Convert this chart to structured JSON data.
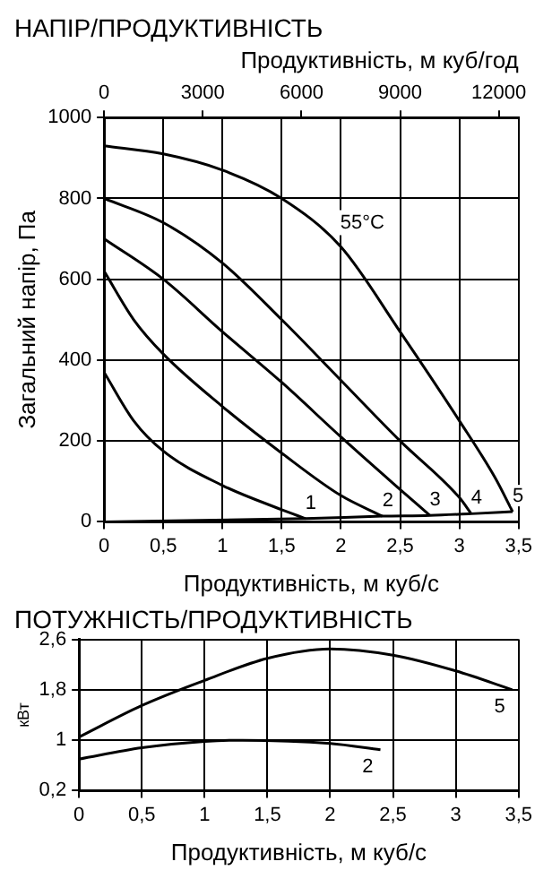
{
  "chart_data": [
    {
      "type": "line",
      "title": "НАПІР/ПРОДУКТИВНІСТЬ",
      "xlabel": "Продуктивність, м куб/с",
      "ylabel": "Загальний напір, Па",
      "x2label": "Продуктивність, м куб/год",
      "xlim": [
        0,
        3.5
      ],
      "xticks": [
        0,
        {
          "value": 0.5,
          "label": "0,5"
        },
        1,
        {
          "value": 1.5,
          "label": "1,5"
        },
        2,
        {
          "value": 2.5,
          "label": "2,5"
        },
        3,
        {
          "value": 3.5,
          "label": "3,5"
        }
      ],
      "ylim": [
        0,
        1000
      ],
      "yticks": [
        0,
        200,
        400,
        600,
        800,
        1000
      ],
      "x2lim": [
        0,
        12600
      ],
      "x2ticks": [
        0,
        3000,
        6000,
        9000,
        12000
      ],
      "grid": true,
      "legend": false,
      "marker": "none",
      "line_style": "solid",
      "annotations": [
        "55°C"
      ],
      "series": [
        {
          "name": "1",
          "color": "#000000",
          "x": [
            0,
            0.25,
            0.5,
            1,
            1.5,
            1.7
          ],
          "values": [
            370,
            250,
            175,
            90,
            30,
            8
          ]
        },
        {
          "name": "2",
          "color": "#000000",
          "x": [
            0,
            0.25,
            0.5,
            1,
            1.5,
            2,
            2.35
          ],
          "values": [
            620,
            500,
            415,
            285,
            170,
            65,
            14
          ]
        },
        {
          "name": "3",
          "color": "#000000",
          "x": [
            0,
            0.5,
            1,
            1.5,
            2,
            2.5,
            2.75
          ],
          "values": [
            700,
            600,
            470,
            345,
            210,
            80,
            16
          ]
        },
        {
          "name": "4",
          "color": "#000000",
          "x": [
            0,
            0.5,
            1,
            1.5,
            2,
            2.5,
            3,
            3.1
          ],
          "values": [
            800,
            740,
            640,
            500,
            350,
            200,
            60,
            20
          ]
        },
        {
          "name": "5",
          "color": "#000000",
          "x": [
            0,
            0.5,
            1,
            1.5,
            2,
            2.5,
            3,
            3.3,
            3.45
          ],
          "values": [
            930,
            910,
            870,
            800,
            680,
            470,
            250,
            110,
            25
          ]
        },
        {
          "color": "#000000",
          "x": [
            0,
            1.7,
            2.35,
            2.75,
            3.1,
            3.45
          ],
          "values": [
            0,
            8,
            14,
            16,
            20,
            25
          ]
        }
      ]
    },
    {
      "type": "line",
      "title": "ПОТУЖНІСТЬ/ПРОДУКТИВНІСТЬ",
      "xlabel": "Продуктивність, м куб/с",
      "ylabel": "кВт",
      "xlim": [
        0,
        3.5
      ],
      "xticks": [
        0,
        {
          "value": 0.5,
          "label": "0,5"
        },
        1,
        {
          "value": 1.5,
          "label": "1,5"
        },
        2,
        {
          "value": 2.5,
          "label": "2,5"
        },
        3,
        {
          "value": 3.5,
          "label": "3,5"
        }
      ],
      "ylim": [
        0.2,
        2.6
      ],
      "yticks": [
        {
          "value": 0.2,
          "label": "0,2"
        },
        1,
        {
          "value": 1.8,
          "label": "1,8"
        },
        {
          "value": 2.6,
          "label": "2,6"
        }
      ],
      "grid": true,
      "legend": false,
      "marker": "none",
      "line_style": "solid",
      "series": [
        {
          "name": "5",
          "color": "#000000",
          "x": [
            0,
            0.5,
            1,
            1.5,
            2,
            2.5,
            3,
            3.45
          ],
          "values": [
            1.05,
            1.55,
            1.95,
            2.3,
            2.45,
            2.35,
            2.1,
            1.8
          ]
        },
        {
          "name": "2",
          "color": "#000000",
          "x": [
            0,
            0.5,
            1,
            1.3,
            2,
            2.4
          ],
          "values": [
            0.7,
            0.88,
            0.98,
            1.0,
            0.95,
            0.85
          ]
        }
      ]
    }
  ]
}
